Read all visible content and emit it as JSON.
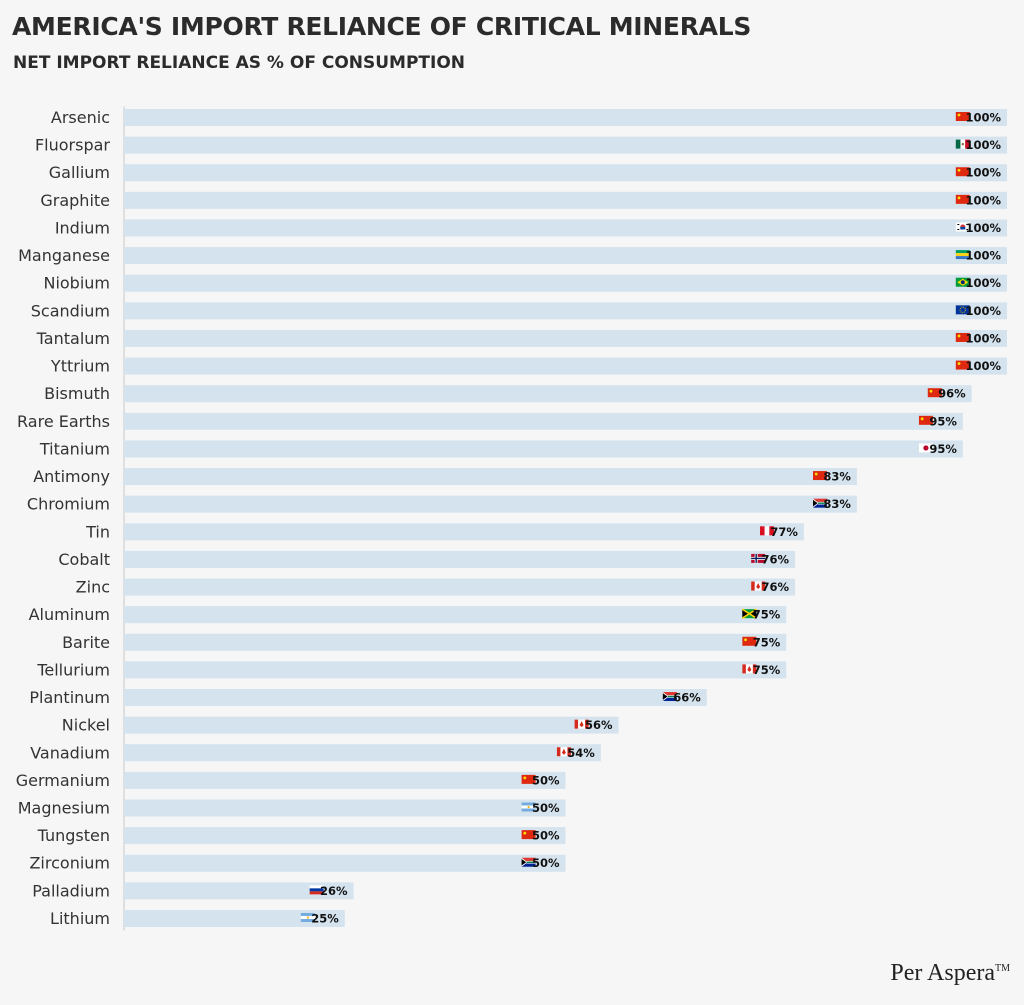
{
  "title": "AMERICA'S IMPORT RELIANCE OF CRITICAL MINERALS",
  "subtitle": "NET IMPORT RELIANCE AS % OF CONSUMPTION",
  "brand": {
    "name": "Per Aspera",
    "mark": "TM"
  },
  "colors": {
    "bar": "#d4e3ee",
    "axis": "#c8c8c8",
    "text": "#2b2b2b"
  },
  "chart_data": {
    "type": "bar",
    "orientation": "horizontal",
    "title": "AMERICA'S IMPORT RELIANCE OF CRITICAL MINERALS",
    "subtitle": "NET IMPORT RELIANCE AS % OF CONSUMPTION",
    "xlim": [
      0,
      100
    ],
    "value_suffix": "%",
    "categories": [
      "Arsenic",
      "Fluorspar",
      "Gallium",
      "Graphite",
      "Indium",
      "Manganese",
      "Niobium",
      "Scandium",
      "Tantalum",
      "Yttrium",
      "Bismuth",
      "Rare Earths",
      "Titanium",
      "Antimony",
      "Chromium",
      "Tin",
      "Cobalt",
      "Zinc",
      "Aluminum",
      "Barite",
      "Tellurium",
      "Plantinum",
      "Nickel",
      "Vanadium",
      "Germanium",
      "Magnesium",
      "Tungsten",
      "Zirconium",
      "Palladium",
      "Lithium"
    ],
    "values": [
      100,
      100,
      100,
      100,
      100,
      100,
      100,
      100,
      100,
      100,
      96,
      95,
      95,
      83,
      83,
      77,
      76,
      76,
      75,
      75,
      75,
      66,
      56,
      54,
      50,
      50,
      50,
      50,
      26,
      25
    ],
    "value_labels": [
      "100%",
      "100%",
      "100%",
      "100%",
      "100%",
      "100%",
      "100%",
      "100%",
      "100%",
      "100%",
      "96%",
      "95%",
      "95%",
      "83%",
      "83%",
      "77%",
      "76%",
      "76%",
      "75%",
      "75%",
      "75%",
      "66%",
      "56%",
      "54%",
      "50%",
      "50%",
      "50%",
      "50%",
      "26%",
      "25%"
    ],
    "top_source_flags": [
      "china-flag",
      "mexico-flag",
      "china-flag",
      "china-flag",
      "south-korea-flag",
      "gabon-flag",
      "brazil-flag",
      "eu-flag",
      "china-flag",
      "china-flag",
      "china-flag",
      "china-flag",
      "japan-flag",
      "china-flag",
      "south-africa-flag",
      "peru-flag",
      "norway-flag",
      "canada-flag",
      "jamaica-flag",
      "china-flag",
      "canada-flag",
      "south-africa-flag",
      "canada-flag",
      "canada-flag",
      "china-flag",
      "argentina-flag",
      "china-flag",
      "south-africa-flag",
      "russia-flag",
      "argentina-flag"
    ],
    "grid": false,
    "legend": "none"
  }
}
